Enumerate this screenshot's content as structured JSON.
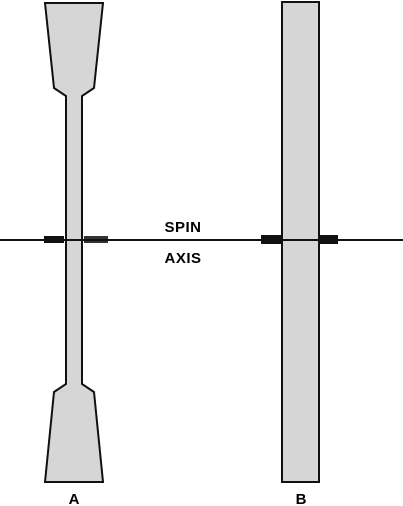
{
  "diagram": {
    "axis_labels": {
      "top": "SPIN",
      "bottom": "AXIS"
    },
    "parts": [
      {
        "label": "A"
      },
      {
        "label": "B"
      }
    ],
    "colors": {
      "body_fill": "#d6d6d6",
      "outline": "#111111",
      "background": "#ffffff"
    }
  }
}
